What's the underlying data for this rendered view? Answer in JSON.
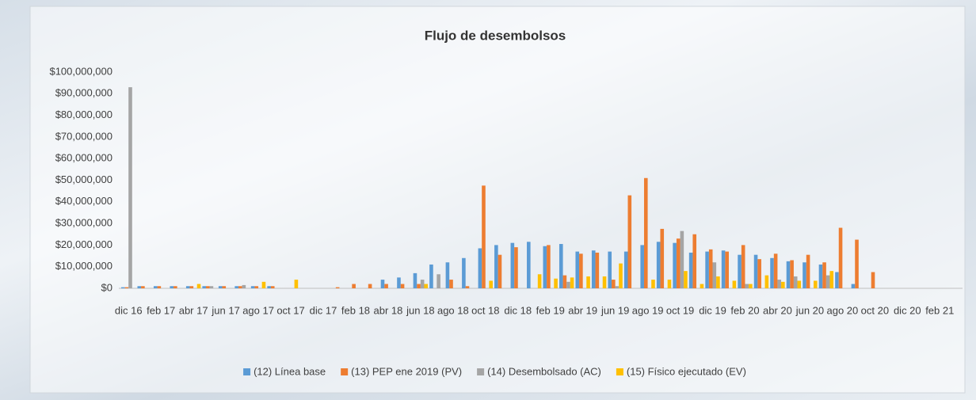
{
  "chart_data": {
    "type": "bar",
    "title": "Flujo de desembolsos",
    "categories": [
      "dic 16",
      null,
      "feb 17",
      null,
      "abr 17",
      null,
      "jun 17",
      null,
      "ago 17",
      null,
      "oct 17",
      null,
      "dic 17",
      null,
      "feb 18",
      null,
      "abr 18",
      null,
      "jun 18",
      null,
      "ago 18",
      null,
      "oct 18",
      null,
      "dic 18",
      null,
      "feb 19",
      null,
      "abr 19",
      null,
      "jun 19",
      null,
      "ago 19",
      null,
      "oct 19",
      null,
      "dic 19",
      null,
      "feb 20",
      null,
      "abr 20",
      null,
      "jun 20",
      null,
      "ago 20",
      null,
      "oct 20",
      null,
      "dic 20",
      null,
      "feb 21",
      null
    ],
    "series": [
      {
        "name": "(12) Línea base",
        "color": "#5b9bd5",
        "values": [
          500000,
          1000000,
          1000000,
          1000000,
          1000000,
          1000000,
          1000000,
          1000000,
          1000000,
          1000000,
          0,
          0,
          0,
          0,
          0,
          0,
          4000000,
          5000000,
          7000000,
          11000000,
          12000000,
          14000000,
          18500000,
          20000000,
          21000000,
          21500000,
          19500000,
          20500000,
          17000000,
          17500000,
          17000000,
          17000000,
          20000000,
          21500000,
          21000000,
          16500000,
          17000000,
          17500000,
          15500000,
          15500000,
          14000000,
          12500000,
          12000000,
          11000000,
          7500000,
          2000000,
          0,
          0,
          0,
          0,
          0,
          0
        ]
      },
      {
        "name": "(13) PEP ene 2019 (PV)",
        "color": "#ed7d31",
        "values": [
          500000,
          1000000,
          1000000,
          1000000,
          1000000,
          1000000,
          1000000,
          1000000,
          1000000,
          1000000,
          0,
          0,
          0,
          500000,
          2000000,
          2000000,
          2000000,
          2000000,
          2000000,
          0,
          4000000,
          1000000,
          47500000,
          15500000,
          19000000,
          0,
          20000000,
          6000000,
          16000000,
          16500000,
          4000000,
          43000000,
          51000000,
          27500000,
          23000000,
          25000000,
          18000000,
          17000000,
          20000000,
          13500000,
          16000000,
          13000000,
          15500000,
          12000000,
          28000000,
          22500000,
          7500000,
          0,
          0,
          0,
          0,
          0
        ]
      },
      {
        "name": "(14) Desembolsado (AC)",
        "color": "#a5a5a5",
        "values": [
          93000000,
          0,
          0,
          0,
          0,
          1000000,
          0,
          1500000,
          0,
          0,
          0,
          0,
          0,
          0,
          0,
          0,
          0,
          0,
          4000000,
          6500000,
          0,
          0,
          0,
          0,
          0,
          0,
          0,
          3000000,
          0,
          0,
          1000000,
          0,
          0,
          0,
          26500000,
          0,
          12000000,
          0,
          2000000,
          0,
          4000000,
          5500000,
          0,
          6000000,
          0,
          0,
          0,
          0,
          0,
          0,
          0,
          0
        ]
      },
      {
        "name": "(15) Físico ejecutado (EV)",
        "color": "#ffc000",
        "values": [
          0,
          0,
          0,
          0,
          2000000,
          0,
          0,
          0,
          3000000,
          0,
          4000000,
          0,
          0,
          0,
          0,
          0,
          0,
          0,
          2000000,
          0,
          0,
          0,
          3500000,
          0,
          0,
          6500000,
          4500000,
          5000000,
          5500000,
          5500000,
          11500000,
          0,
          4000000,
          4000000,
          8000000,
          2000000,
          5500000,
          3500000,
          2000000,
          6000000,
          3000000,
          3500000,
          3500000,
          8000000,
          0,
          0,
          0,
          0,
          0,
          0,
          0,
          0
        ]
      }
    ],
    "ylim": [
      0,
      100000000
    ],
    "yticks": [
      {
        "value": 0,
        "label": "$0"
      },
      {
        "value": 10000000,
        "label": "$10,000,000"
      },
      {
        "value": 20000000,
        "label": "$20,000,000"
      },
      {
        "value": 30000000,
        "label": "$30,000,000"
      },
      {
        "value": 40000000,
        "label": "$40,000,000"
      },
      {
        "value": 50000000,
        "label": "$50,000,000"
      },
      {
        "value": 60000000,
        "label": "$60,000,000"
      },
      {
        "value": 70000000,
        "label": "$70,000,000"
      },
      {
        "value": 80000000,
        "label": "$80,000,000"
      },
      {
        "value": 90000000,
        "label": "$90,000,000"
      },
      {
        "value": 100000000,
        "label": "$100,000,000"
      }
    ],
    "grid": false,
    "legend": "bottom"
  }
}
